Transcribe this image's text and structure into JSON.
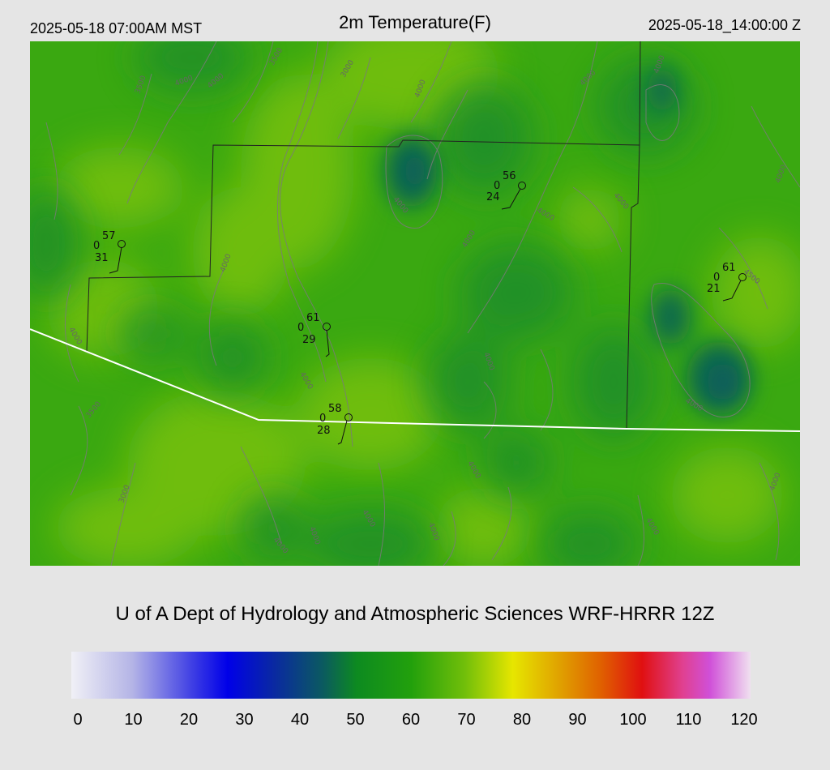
{
  "header": {
    "local_time": "2025-05-18 07:00AM MST",
    "title": "2m Temperature(F)",
    "utc_time": "2025-05-18_14:00:00 Z"
  },
  "credit": "U of A Dept of Hydrology and Atmospheric Sciences WRF-HRRR 12Z",
  "colorbar": {
    "min": 0,
    "max": 120,
    "ticks": [
      "0",
      "10",
      "20",
      "30",
      "40",
      "50",
      "60",
      "70",
      "80",
      "90",
      "100",
      "110",
      "120"
    ]
  },
  "contour_labels": [
    "3500",
    "4000",
    "3000",
    "4500"
  ],
  "stations": [
    {
      "temp": "57",
      "precip": "0",
      "dew": "31"
    },
    {
      "temp": "56",
      "precip": "0",
      "dew": "24"
    },
    {
      "temp": "61",
      "precip": "0",
      "dew": "29"
    },
    {
      "temp": "61",
      "precip": "0",
      "dew": "21"
    },
    {
      "temp": "58",
      "precip": "0",
      "dew": "28"
    }
  ],
  "colors": {
    "background": "#e5e5e5",
    "map_base": "#3aa811",
    "warm_area": "#72bf0a",
    "cool_area": "#1a8a2c",
    "coldest_area": "#0e6b4a",
    "border_line": "#ffffff",
    "county_line": "#222222",
    "contour": "#7a7a7a"
  }
}
